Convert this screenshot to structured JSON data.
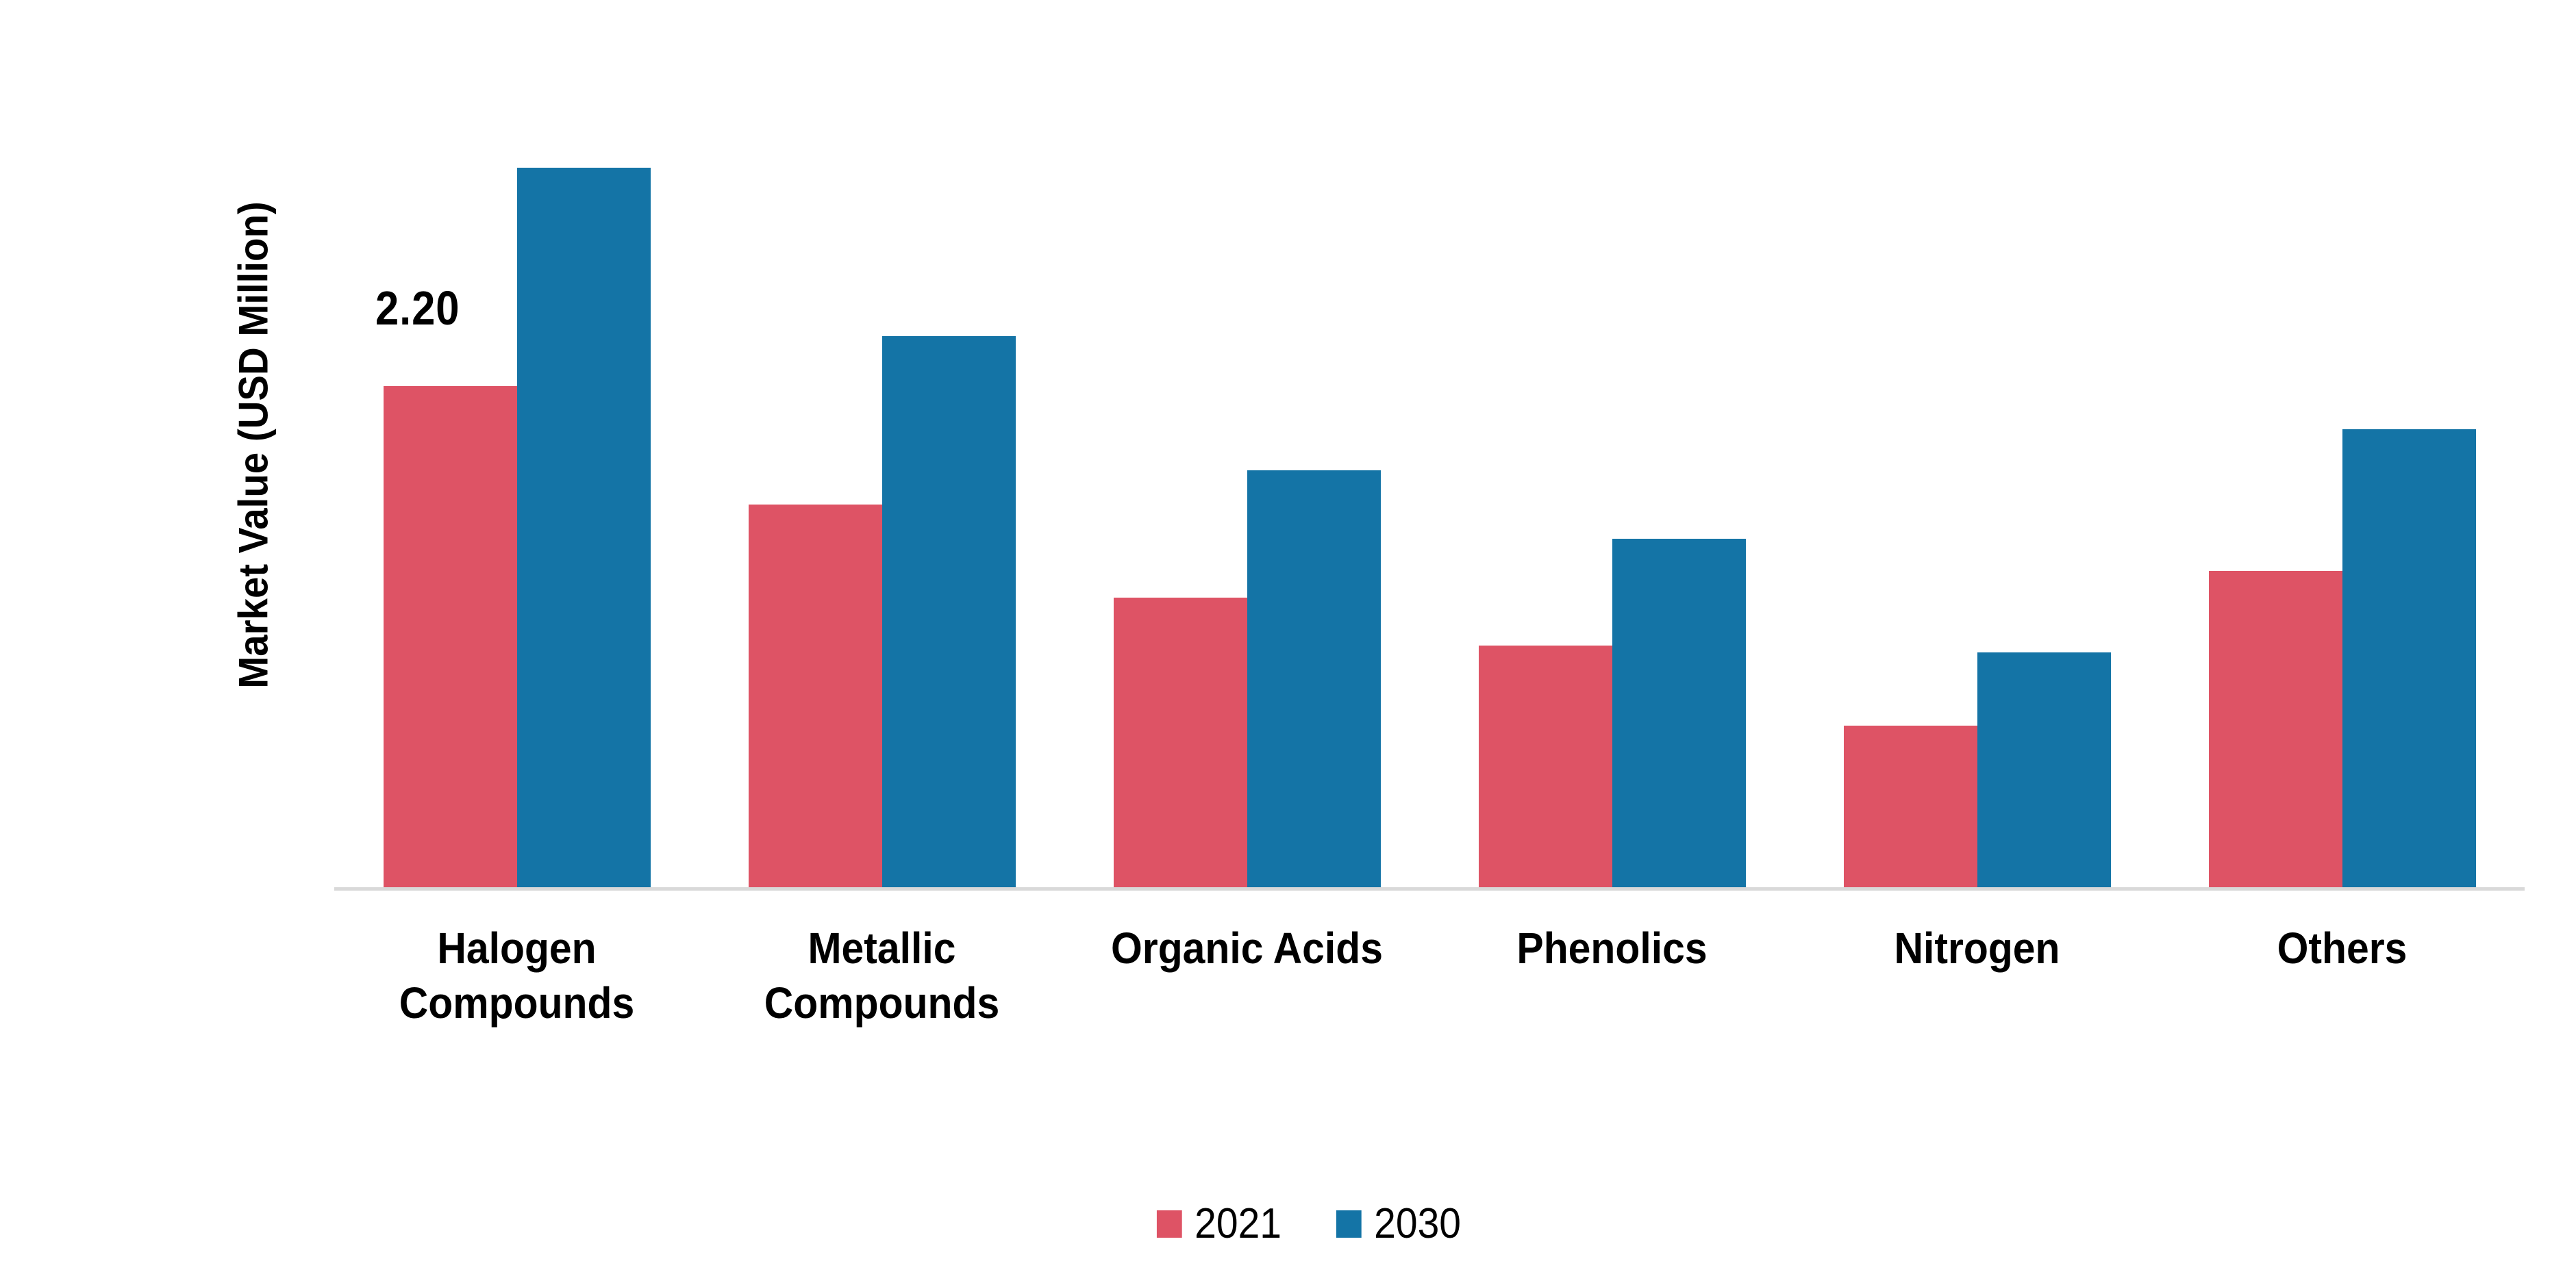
{
  "chart_data": {
    "type": "bar",
    "title": "",
    "xlabel": "",
    "ylabel": "Market Value (USD Million)",
    "categories": [
      "Halogen Compounds",
      "Metallic Compounds",
      "Organic Acids",
      "Phenolics",
      "Nitrogen",
      "Others"
    ],
    "series": [
      {
        "name": "2021",
        "color": "#DE5365",
        "values": [
          2.2,
          1.68,
          1.27,
          1.06,
          0.71,
          1.39
        ]
      },
      {
        "name": "2030",
        "color": "#1474A6",
        "values": [
          3.16,
          2.42,
          1.83,
          1.53,
          1.03,
          2.01
        ]
      }
    ],
    "bar_label": {
      "text": "2.20",
      "series": "2021",
      "category": "Halogen Compounds"
    },
    "ylim": [
      0,
      3.3
    ],
    "grid": false,
    "y_axis_ticks_visible": false,
    "axis_line_color": "#D9D9D9",
    "legend_position": "bottom"
  }
}
